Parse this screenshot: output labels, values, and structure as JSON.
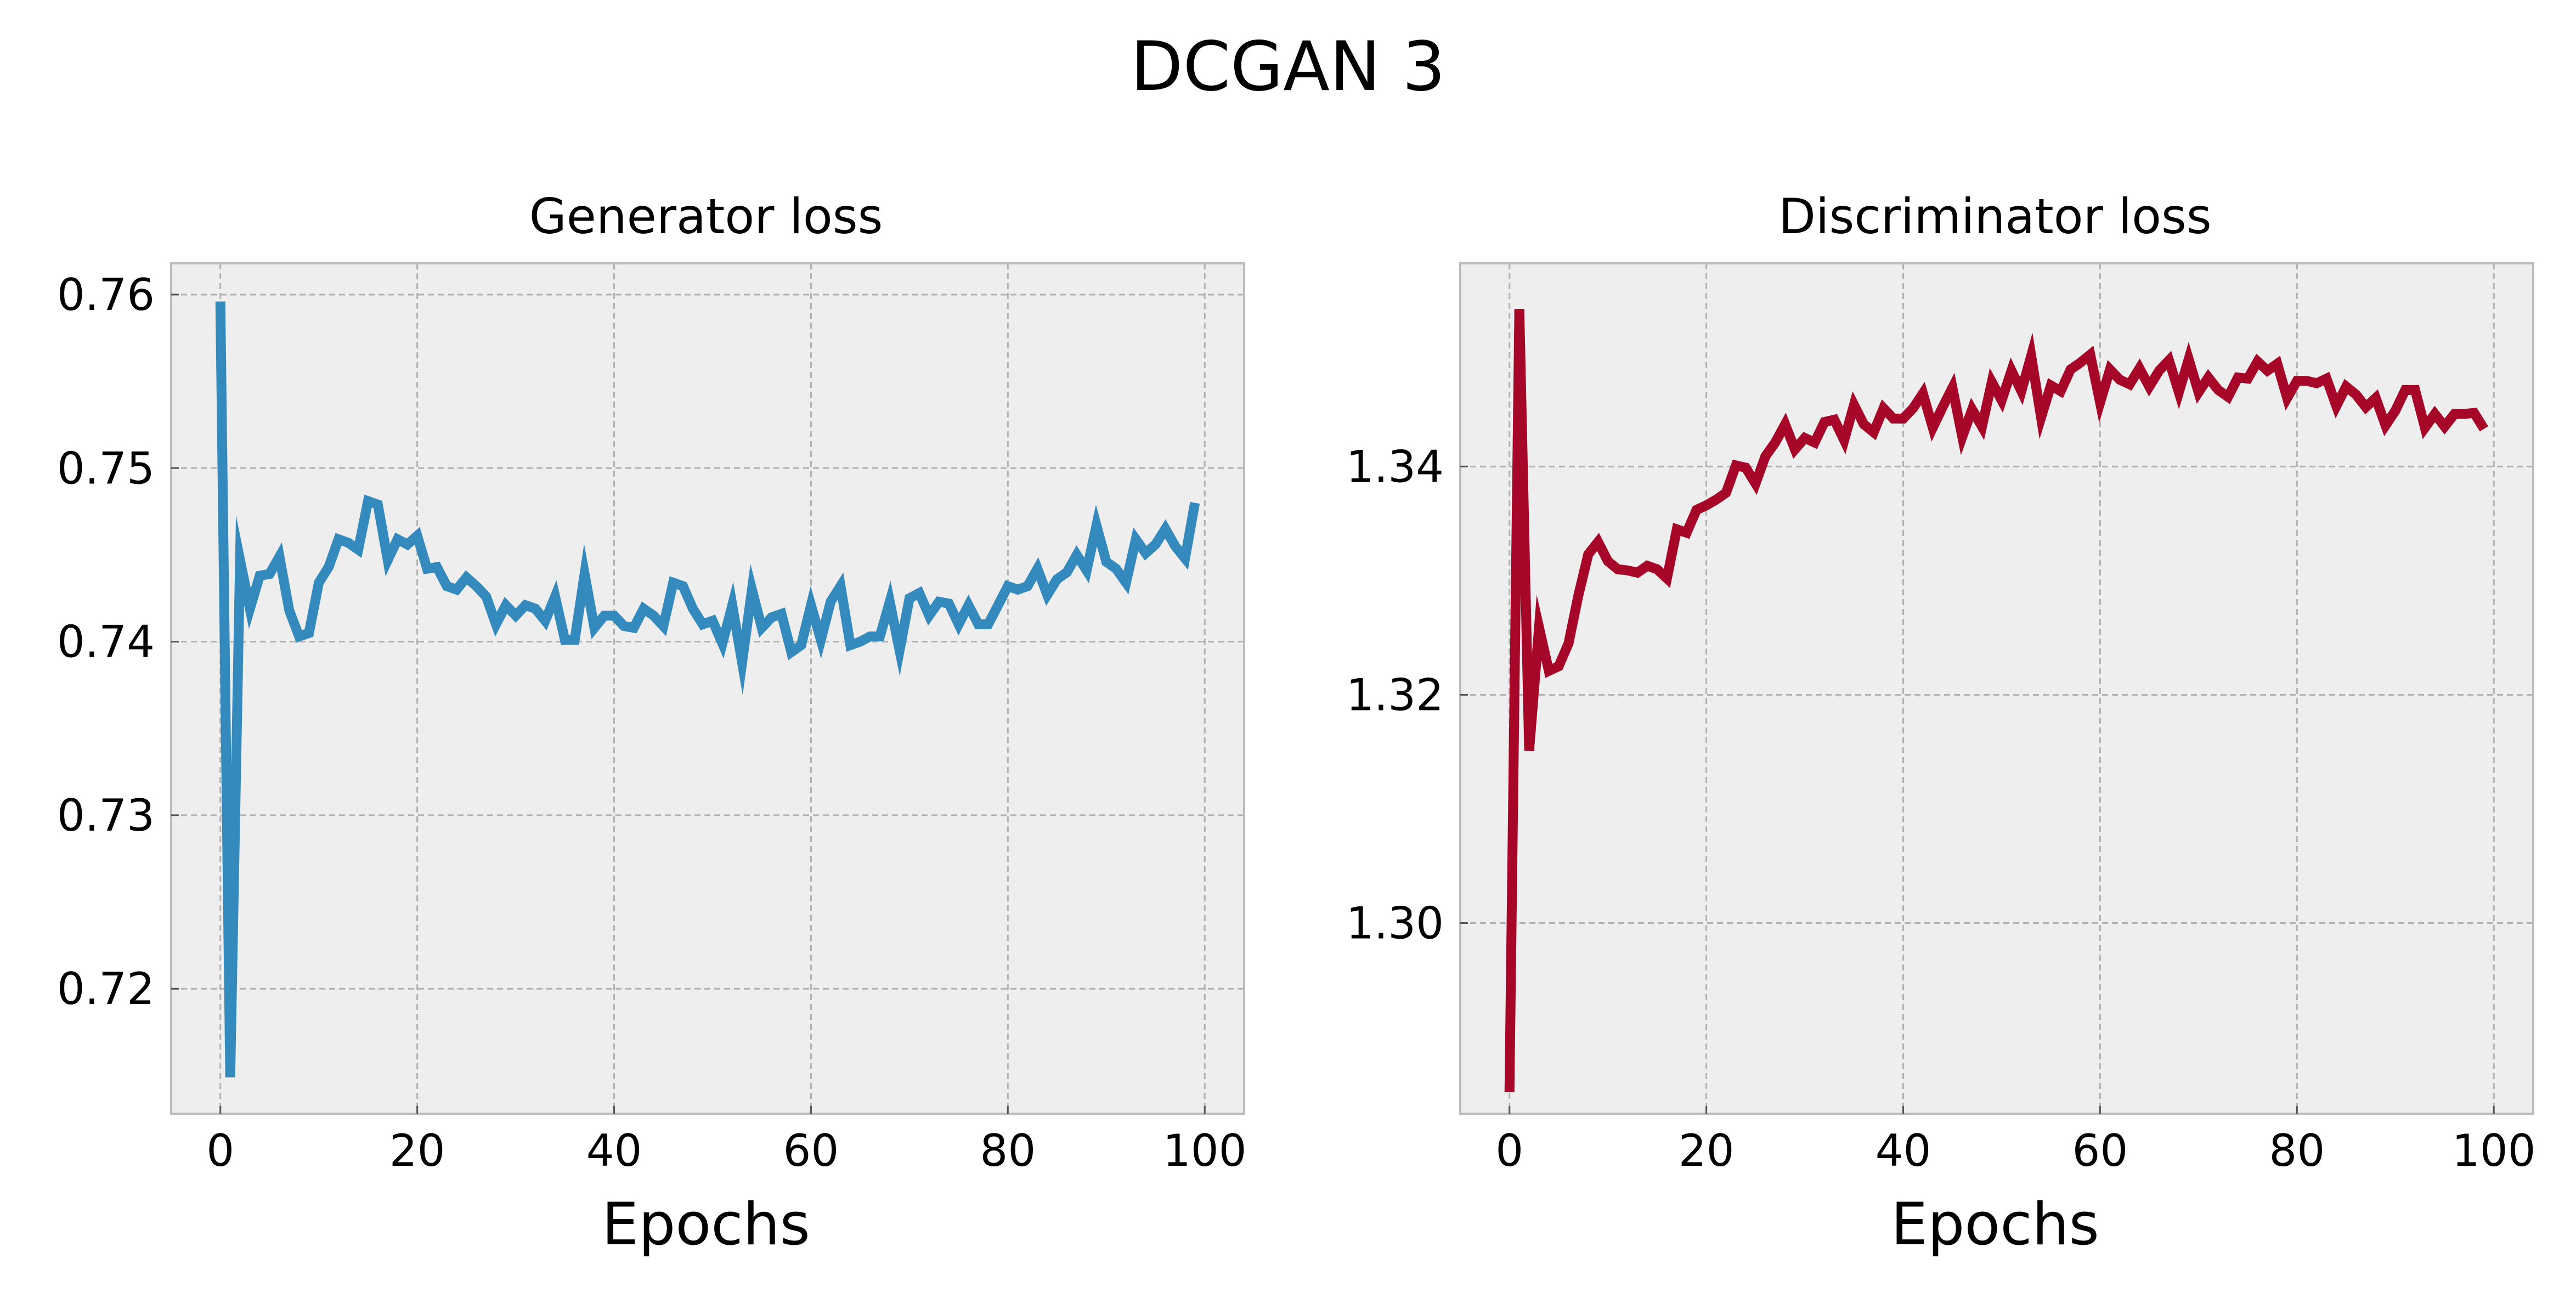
{
  "figure": {
    "title": "DCGAN 3"
  },
  "chart_data": [
    {
      "type": "line",
      "title": "Generator loss",
      "xlabel": "Epochs",
      "ylabel": "",
      "xlim": [
        -5,
        104
      ],
      "ylim": [
        0.7128,
        0.7618
      ],
      "xticks": [
        0,
        20,
        40,
        60,
        80,
        100
      ],
      "xtick_labels": [
        "0",
        "20",
        "40",
        "60",
        "80",
        "100"
      ],
      "yticks": [
        0.72,
        0.73,
        0.74,
        0.75,
        0.76
      ],
      "ytick_labels": [
        "0.72",
        "0.73",
        "0.74",
        "0.75",
        "0.76"
      ],
      "grid": true,
      "color": "#348ABD",
      "series": [
        {
          "x": [
            0,
            1,
            2,
            3,
            4,
            5,
            6,
            7,
            8,
            9,
            10,
            11,
            12,
            13,
            14,
            15,
            16,
            17,
            18,
            19,
            20,
            21,
            22,
            23,
            24,
            25,
            26,
            27,
            28,
            29,
            30,
            31,
            32,
            33,
            34,
            35,
            36,
            37,
            38,
            39,
            40,
            41,
            42,
            43,
            44,
            45,
            46,
            47,
            48,
            49,
            50,
            51,
            52,
            53,
            54,
            55,
            56,
            57,
            58,
            59,
            60,
            61,
            62,
            63,
            64,
            65,
            66,
            67,
            68,
            69,
            70,
            71,
            72,
            73,
            74,
            75,
            76,
            77,
            78,
            79,
            80,
            81,
            82,
            83,
            84,
            85,
            86,
            87,
            88,
            89,
            90,
            91,
            92,
            93,
            94,
            95,
            96,
            97,
            98,
            99
          ],
          "y": [
            0.7596,
            0.7149,
            0.7447,
            0.7419,
            0.7438,
            0.7439,
            0.7449,
            0.7418,
            0.7403,
            0.7405,
            0.7434,
            0.7443,
            0.7459,
            0.7457,
            0.7453,
            0.7481,
            0.7479,
            0.7447,
            0.7459,
            0.7456,
            0.7461,
            0.7442,
            0.7443,
            0.7432,
            0.743,
            0.7437,
            0.7432,
            0.7426,
            0.741,
            0.7421,
            0.7415,
            0.7421,
            0.7419,
            0.7412,
            0.7426,
            0.7401,
            0.7401,
            0.7439,
            0.7408,
            0.7415,
            0.7415,
            0.7409,
            0.7408,
            0.7419,
            0.7415,
            0.7409,
            0.7434,
            0.7432,
            0.7419,
            0.741,
            0.7412,
            0.7399,
            0.7421,
            0.7388,
            0.743,
            0.7408,
            0.7414,
            0.7416,
            0.7394,
            0.7398,
            0.7421,
            0.7401,
            0.7423,
            0.7432,
            0.7398,
            0.74,
            0.7403,
            0.7403,
            0.7423,
            0.7395,
            0.7425,
            0.7428,
            0.7415,
            0.7423,
            0.7422,
            0.741,
            0.7421,
            0.741,
            0.741,
            0.7421,
            0.7432,
            0.743,
            0.7432,
            0.7442,
            0.7427,
            0.7436,
            0.744,
            0.745,
            0.7441,
            0.7467,
            0.7446,
            0.7442,
            0.7434,
            0.7459,
            0.7451,
            0.7456,
            0.7465,
            0.7455,
            0.7448,
            0.748
          ]
        }
      ]
    },
    {
      "type": "line",
      "title": "Discriminator loss",
      "xlabel": "Epochs",
      "ylabel": "",
      "xlim": [
        -5,
        104
      ],
      "ylim": [
        1.2833,
        1.3578
      ],
      "xticks": [
        0,
        20,
        40,
        60,
        80,
        100
      ],
      "xtick_labels": [
        "0",
        "20",
        "40",
        "60",
        "80",
        "100"
      ],
      "yticks": [
        1.3,
        1.32,
        1.34
      ],
      "ytick_labels": [
        "1.30",
        "1.32",
        "1.34"
      ],
      "grid": true,
      "color": "#A60628",
      "series": [
        {
          "x": [
            0,
            1,
            2,
            3,
            4,
            5,
            6,
            7,
            8,
            9,
            10,
            11,
            12,
            13,
            14,
            15,
            16,
            17,
            18,
            19,
            20,
            21,
            22,
            23,
            24,
            25,
            26,
            27,
            28,
            29,
            30,
            31,
            32,
            33,
            34,
            35,
            36,
            37,
            38,
            39,
            40,
            41,
            42,
            43,
            44,
            45,
            46,
            47,
            48,
            49,
            50,
            51,
            52,
            53,
            54,
            55,
            56,
            57,
            58,
            59,
            60,
            61,
            62,
            63,
            64,
            65,
            66,
            67,
            68,
            69,
            70,
            71,
            72,
            73,
            74,
            75,
            76,
            77,
            78,
            79,
            80,
            81,
            82,
            83,
            84,
            85,
            86,
            87,
            88,
            89,
            90,
            91,
            92,
            93,
            94,
            95,
            96,
            97,
            98,
            99
          ],
          "y": [
            1.2852,
            1.3538,
            1.3151,
            1.3259,
            1.3221,
            1.3225,
            1.3245,
            1.3287,
            1.3323,
            1.3334,
            1.3317,
            1.331,
            1.3309,
            1.3307,
            1.3313,
            1.331,
            1.3302,
            1.3345,
            1.3342,
            1.3362,
            1.3366,
            1.3371,
            1.3377,
            1.3401,
            1.3399,
            1.3385,
            1.3409,
            1.3421,
            1.3437,
            1.3415,
            1.3425,
            1.3421,
            1.3439,
            1.3441,
            1.3423,
            1.3454,
            1.3437,
            1.343,
            1.3451,
            1.3442,
            1.3442,
            1.3451,
            1.3464,
            1.3434,
            1.3452,
            1.3469,
            1.3426,
            1.345,
            1.3435,
            1.3474,
            1.3458,
            1.3484,
            1.3466,
            1.3497,
            1.3443,
            1.3471,
            1.3466,
            1.3485,
            1.3491,
            1.3498,
            1.3456,
            1.3485,
            1.3476,
            1.3472,
            1.3486,
            1.347,
            1.3484,
            1.3493,
            1.3465,
            1.3494,
            1.3465,
            1.3478,
            1.3467,
            1.3461,
            1.3478,
            1.3477,
            1.3492,
            1.3484,
            1.349,
            1.346,
            1.3475,
            1.3475,
            1.3473,
            1.3477,
            1.3453,
            1.347,
            1.3463,
            1.3452,
            1.346,
            1.3436,
            1.3449,
            1.3467,
            1.3467,
            1.3434,
            1.3446,
            1.3435,
            1.3446,
            1.3446,
            1.3447,
            1.3433
          ]
        }
      ]
    }
  ]
}
